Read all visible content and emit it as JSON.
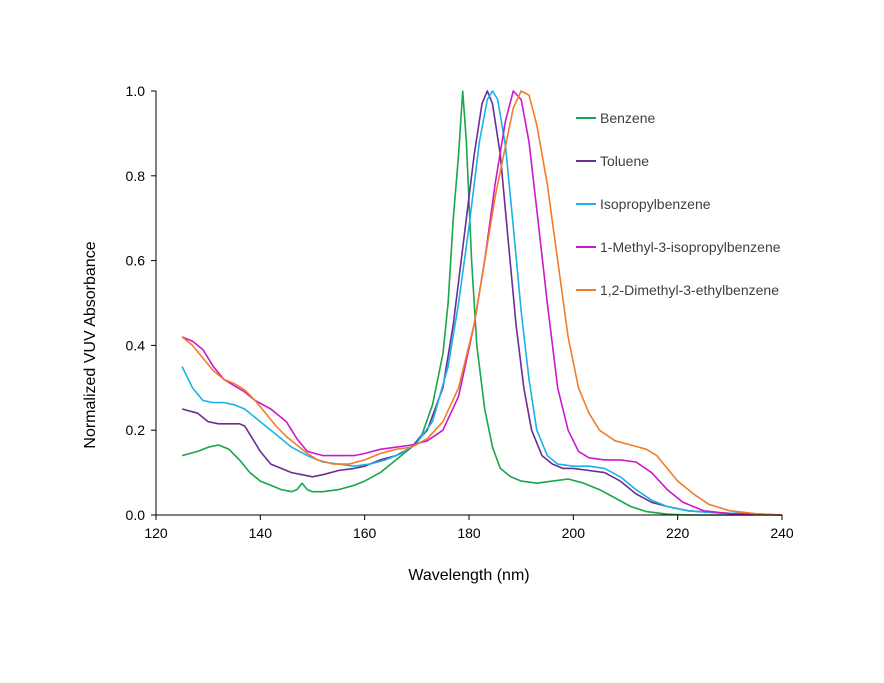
{
  "chart_data": {
    "type": "line",
    "title": "",
    "xlabel": "Wavelength (nm)",
    "ylabel": "Normalized VUV Absorbance",
    "xlim": [
      120,
      240
    ],
    "ylim": [
      0,
      1.0
    ],
    "xticks": [
      120,
      140,
      160,
      180,
      200,
      220,
      240
    ],
    "yticks": [
      0.0,
      0.2,
      0.4,
      0.6,
      0.8,
      1.0
    ],
    "xtick_labels": [
      "120",
      "140",
      "160",
      "180",
      "200",
      "220",
      "240"
    ],
    "ytick_labels": [
      "0.0",
      "0.2",
      "0.4",
      "0.6",
      "0.8",
      "1.0"
    ],
    "grid": false,
    "legend_position": "right",
    "series": [
      {
        "name": "Benzene",
        "color": "#1aa64a",
        "points": [
          [
            125,
            0.14
          ],
          [
            128,
            0.15
          ],
          [
            130,
            0.16
          ],
          [
            132,
            0.165
          ],
          [
            134,
            0.155
          ],
          [
            136,
            0.13
          ],
          [
            138,
            0.1
          ],
          [
            140,
            0.08
          ],
          [
            142,
            0.07
          ],
          [
            144,
            0.06
          ],
          [
            146,
            0.055
          ],
          [
            147,
            0.06
          ],
          [
            148,
            0.075
          ],
          [
            149,
            0.06
          ],
          [
            150,
            0.055
          ],
          [
            152,
            0.055
          ],
          [
            155,
            0.06
          ],
          [
            158,
            0.07
          ],
          [
            160,
            0.08
          ],
          [
            163,
            0.1
          ],
          [
            166,
            0.13
          ],
          [
            169,
            0.16
          ],
          [
            171,
            0.19
          ],
          [
            173,
            0.26
          ],
          [
            175,
            0.38
          ],
          [
            176,
            0.5
          ],
          [
            177,
            0.7
          ],
          [
            178,
            0.85
          ],
          [
            178.8,
            1.0
          ],
          [
            179.5,
            0.88
          ],
          [
            180.5,
            0.6
          ],
          [
            181.5,
            0.4
          ],
          [
            183,
            0.25
          ],
          [
            184.5,
            0.16
          ],
          [
            186,
            0.11
          ],
          [
            188,
            0.09
          ],
          [
            190,
            0.08
          ],
          [
            193,
            0.075
          ],
          [
            196,
            0.08
          ],
          [
            199,
            0.085
          ],
          [
            202,
            0.075
          ],
          [
            205,
            0.06
          ],
          [
            208,
            0.04
          ],
          [
            211,
            0.02
          ],
          [
            214,
            0.008
          ],
          [
            218,
            0.002
          ],
          [
            222,
            0.0
          ],
          [
            240,
            0.0
          ]
        ]
      },
      {
        "name": "Toluene",
        "color": "#6a2d91",
        "points": [
          [
            125,
            0.25
          ],
          [
            128,
            0.24
          ],
          [
            130,
            0.22
          ],
          [
            132,
            0.215
          ],
          [
            134,
            0.215
          ],
          [
            136,
            0.215
          ],
          [
            137,
            0.21
          ],
          [
            138,
            0.19
          ],
          [
            140,
            0.15
          ],
          [
            142,
            0.12
          ],
          [
            144,
            0.11
          ],
          [
            146,
            0.1
          ],
          [
            148,
            0.095
          ],
          [
            150,
            0.09
          ],
          [
            152,
            0.095
          ],
          [
            155,
            0.105
          ],
          [
            158,
            0.11
          ],
          [
            160,
            0.115
          ],
          [
            163,
            0.13
          ],
          [
            166,
            0.14
          ],
          [
            169,
            0.16
          ],
          [
            172,
            0.2
          ],
          [
            175,
            0.3
          ],
          [
            177,
            0.45
          ],
          [
            179,
            0.65
          ],
          [
            181,
            0.85
          ],
          [
            182.5,
            0.97
          ],
          [
            183.5,
            1.0
          ],
          [
            184.5,
            0.97
          ],
          [
            186,
            0.85
          ],
          [
            187.5,
            0.65
          ],
          [
            189,
            0.45
          ],
          [
            190.5,
            0.3
          ],
          [
            192,
            0.2
          ],
          [
            194,
            0.14
          ],
          [
            196,
            0.12
          ],
          [
            198,
            0.11
          ],
          [
            200,
            0.11
          ],
          [
            203,
            0.105
          ],
          [
            206,
            0.1
          ],
          [
            209,
            0.08
          ],
          [
            212,
            0.05
          ],
          [
            215,
            0.03
          ],
          [
            218,
            0.02
          ],
          [
            222,
            0.01
          ],
          [
            228,
            0.005
          ],
          [
            240,
            0.0
          ]
        ]
      },
      {
        "name": "Isopropylbenzene",
        "color": "#1ab3e6",
        "points": [
          [
            125,
            0.35
          ],
          [
            127,
            0.3
          ],
          [
            129,
            0.27
          ],
          [
            131,
            0.265
          ],
          [
            133,
            0.265
          ],
          [
            135,
            0.26
          ],
          [
            137,
            0.25
          ],
          [
            140,
            0.22
          ],
          [
            143,
            0.19
          ],
          [
            146,
            0.16
          ],
          [
            149,
            0.14
          ],
          [
            152,
            0.125
          ],
          [
            155,
            0.12
          ],
          [
            158,
            0.115
          ],
          [
            161,
            0.12
          ],
          [
            164,
            0.13
          ],
          [
            167,
            0.145
          ],
          [
            170,
            0.17
          ],
          [
            173,
            0.22
          ],
          [
            176,
            0.35
          ],
          [
            178,
            0.5
          ],
          [
            180,
            0.68
          ],
          [
            182,
            0.88
          ],
          [
            183.5,
            0.98
          ],
          [
            184.5,
            1.0
          ],
          [
            185.5,
            0.98
          ],
          [
            187,
            0.87
          ],
          [
            188.5,
            0.68
          ],
          [
            190,
            0.48
          ],
          [
            191.5,
            0.32
          ],
          [
            193,
            0.2
          ],
          [
            195,
            0.14
          ],
          [
            197,
            0.12
          ],
          [
            200,
            0.115
          ],
          [
            203,
            0.115
          ],
          [
            206,
            0.11
          ],
          [
            209,
            0.09
          ],
          [
            212,
            0.06
          ],
          [
            215,
            0.035
          ],
          [
            218,
            0.02
          ],
          [
            222,
            0.01
          ],
          [
            228,
            0.005
          ],
          [
            240,
            0.0
          ]
        ]
      },
      {
        "name": "1-Methyl-3-isopropylbenzene",
        "color": "#cc18cc",
        "points": [
          [
            125,
            0.42
          ],
          [
            127,
            0.41
          ],
          [
            129,
            0.39
          ],
          [
            131,
            0.35
          ],
          [
            133,
            0.32
          ],
          [
            135,
            0.305
          ],
          [
            137,
            0.29
          ],
          [
            139,
            0.27
          ],
          [
            142,
            0.25
          ],
          [
            145,
            0.22
          ],
          [
            147,
            0.18
          ],
          [
            149,
            0.15
          ],
          [
            152,
            0.14
          ],
          [
            155,
            0.14
          ],
          [
            158,
            0.14
          ],
          [
            160,
            0.145
          ],
          [
            163,
            0.155
          ],
          [
            166,
            0.16
          ],
          [
            169,
            0.165
          ],
          [
            172,
            0.175
          ],
          [
            175,
            0.2
          ],
          [
            178,
            0.28
          ],
          [
            181,
            0.45
          ],
          [
            183,
            0.6
          ],
          [
            185,
            0.78
          ],
          [
            187,
            0.93
          ],
          [
            188.5,
            1.0
          ],
          [
            190,
            0.98
          ],
          [
            191.5,
            0.88
          ],
          [
            193,
            0.72
          ],
          [
            195,
            0.5
          ],
          [
            197,
            0.3
          ],
          [
            199,
            0.2
          ],
          [
            201,
            0.15
          ],
          [
            203,
            0.135
          ],
          [
            206,
            0.13
          ],
          [
            209,
            0.13
          ],
          [
            212,
            0.125
          ],
          [
            215,
            0.1
          ],
          [
            218,
            0.06
          ],
          [
            221,
            0.03
          ],
          [
            225,
            0.01
          ],
          [
            230,
            0.003
          ],
          [
            240,
            0.0
          ]
        ]
      },
      {
        "name": "1,2-Dimethyl-3-ethylbenzene",
        "color": "#f07d2a",
        "points": [
          [
            125,
            0.42
          ],
          [
            127,
            0.4
          ],
          [
            129,
            0.37
          ],
          [
            131,
            0.34
          ],
          [
            133,
            0.32
          ],
          [
            135,
            0.31
          ],
          [
            137,
            0.295
          ],
          [
            139,
            0.27
          ],
          [
            141,
            0.24
          ],
          [
            143,
            0.21
          ],
          [
            145,
            0.185
          ],
          [
            147,
            0.165
          ],
          [
            149,
            0.145
          ],
          [
            151,
            0.13
          ],
          [
            154,
            0.12
          ],
          [
            157,
            0.12
          ],
          [
            160,
            0.13
          ],
          [
            163,
            0.145
          ],
          [
            166,
            0.155
          ],
          [
            169,
            0.16
          ],
          [
            172,
            0.18
          ],
          [
            175,
            0.22
          ],
          [
            178,
            0.3
          ],
          [
            181,
            0.45
          ],
          [
            183,
            0.6
          ],
          [
            185,
            0.75
          ],
          [
            187,
            0.87
          ],
          [
            188.5,
            0.96
          ],
          [
            190,
            1.0
          ],
          [
            191.5,
            0.99
          ],
          [
            193,
            0.92
          ],
          [
            195,
            0.78
          ],
          [
            197,
            0.6
          ],
          [
            199,
            0.42
          ],
          [
            201,
            0.3
          ],
          [
            203,
            0.24
          ],
          [
            205,
            0.2
          ],
          [
            208,
            0.175
          ],
          [
            211,
            0.165
          ],
          [
            214,
            0.155
          ],
          [
            216,
            0.14
          ],
          [
            218,
            0.11
          ],
          [
            220,
            0.08
          ],
          [
            223,
            0.05
          ],
          [
            226,
            0.025
          ],
          [
            230,
            0.01
          ],
          [
            235,
            0.003
          ],
          [
            240,
            0.0
          ]
        ]
      }
    ]
  }
}
